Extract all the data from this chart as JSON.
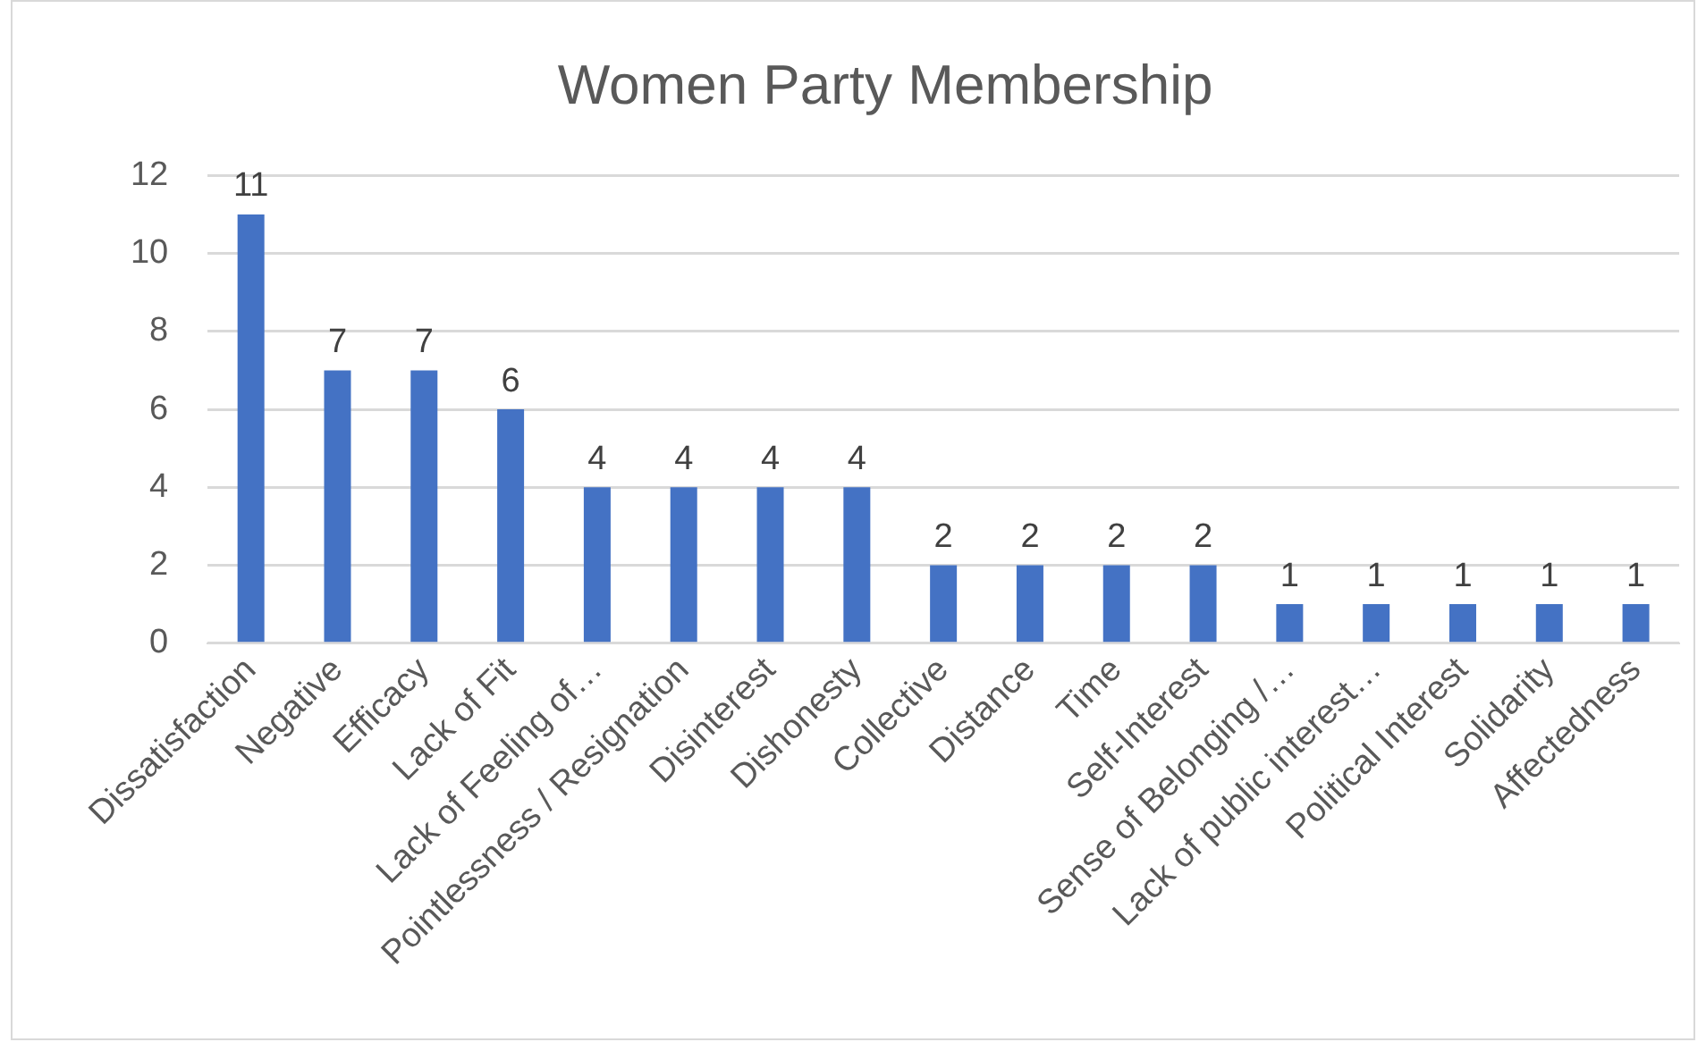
{
  "chart_data": {
    "type": "bar",
    "title": "Women Party Membership",
    "categories": [
      "Dissatisfaction",
      "Negative",
      "Efficacy",
      "Lack of Fit",
      "Lack of Feeling of…",
      "Pointlessness / Resignation",
      "Disinterest",
      "Dishonesty",
      "Collective",
      "Distance",
      "Time",
      "Self-Interest",
      "Sense of Belonging /…",
      "Lack of public interest…",
      "Political Interest",
      "Solidarity",
      "Affectedness"
    ],
    "values": [
      11,
      7,
      7,
      6,
      4,
      4,
      4,
      4,
      2,
      2,
      2,
      2,
      1,
      1,
      1,
      1,
      1
    ],
    "color": "#4472c4",
    "ylim": [
      0,
      12
    ],
    "yticks": [
      0,
      2,
      4,
      6,
      8,
      10,
      12
    ],
    "grid": "y",
    "data_labels": true
  }
}
